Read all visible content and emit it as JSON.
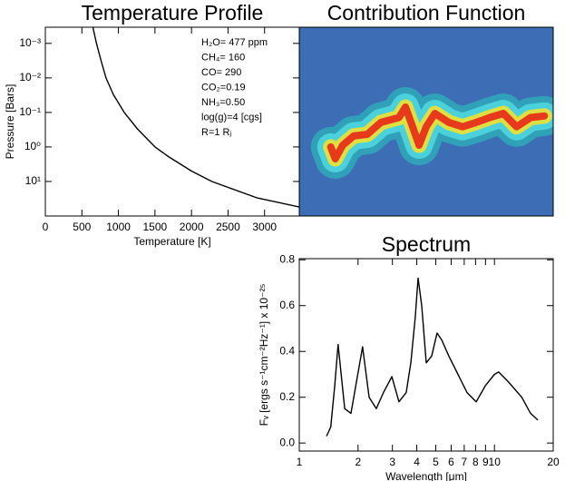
{
  "chart_data": [
    {
      "type": "line",
      "title": "Temperature Profile",
      "xlabel": "Temperature [K]",
      "ylabel": "Pressure [Bars]",
      "x": [
        650,
        700,
        760,
        830,
        930,
        1080,
        1260,
        1500,
        1700,
        2000,
        2280,
        2900,
        3475
      ],
      "values": [
        0.00034,
        0.001,
        0.003,
        0.01,
        0.03,
        0.1,
        0.3,
        1,
        2,
        5,
        10,
        30,
        55
      ],
      "color": "#000000",
      "xlim": [
        0,
        3475
      ],
      "xticks": [
        0,
        500,
        1000,
        1500,
        2000,
        2500,
        3000
      ],
      "ylim": [
        0.00034,
        100
      ],
      "ylog": true,
      "yinvert": true,
      "yticks": [
        {
          "value": 0.001,
          "label": "10⁻³"
        },
        {
          "value": 0.01,
          "label": "10⁻²"
        },
        {
          "value": 0.1,
          "label": "10⁻¹"
        },
        {
          "value": 1,
          "label": "10⁰"
        },
        {
          "value": 10,
          "label": "10¹"
        }
      ],
      "annotations": [
        "H₂O= 477 ppm",
        "CH₄= 160",
        "CO= 290",
        "CO₂=0.19",
        "NH₃=0.50",
        "log(g)=4 [cgs]",
        "R=1 Rⱼ"
      ]
    },
    {
      "type": "heatmap",
      "title": "Contribution Function",
      "x": [
        1.45,
        1.53,
        1.67,
        1.9,
        2.23,
        2.62,
        3.24,
        3.5,
        3.81,
        4.11,
        4.47,
        4.95,
        5.84,
        6.86,
        8.06,
        9.46,
        11.1,
        13.0,
        15.3,
        18.0
      ],
      "values": [
        1,
        2.2,
        0.89,
        0.48,
        0.43,
        0.195,
        0.14,
        0.07,
        0.26,
        0.89,
        0.26,
        0.107,
        0.195,
        0.26,
        0.195,
        0.14,
        0.107,
        0.26,
        0.14,
        0.127
      ],
      "xlim": [
        1,
        20
      ],
      "xlog": true,
      "ylim": [
        0.00034,
        100
      ],
      "ylog": true,
      "yinvert": true,
      "background": "#3d6db4",
      "colors": [
        "#2fa6b8",
        "#4fd6e0",
        "#f0e030",
        "#e82818"
      ]
    },
    {
      "type": "line",
      "title": "Spectrum",
      "xlabel": "Wavelength [μm]",
      "ylabel": "Fᵥ [ergs s⁻¹cm⁻²Hz⁻¹] x 10⁻²⁵",
      "x": [
        1.38,
        1.45,
        1.52,
        1.58,
        1.71,
        1.84,
        2.11,
        2.28,
        2.48,
        2.7,
        2.98,
        3.24,
        3.53,
        3.73,
        3.93,
        4.06,
        4.24,
        4.47,
        4.77,
        5.08,
        5.37,
        5.84,
        6.5,
        7.24,
        8.06,
        8.97,
        10,
        10.5,
        11.7,
        13.8,
        15.3,
        16.7
      ],
      "values": [
        0.03,
        0.07,
        0.25,
        0.43,
        0.15,
        0.13,
        0.42,
        0.2,
        0.15,
        0.22,
        0.29,
        0.18,
        0.22,
        0.35,
        0.55,
        0.72,
        0.6,
        0.35,
        0.38,
        0.48,
        0.45,
        0.38,
        0.3,
        0.22,
        0.18,
        0.25,
        0.3,
        0.31,
        0.27,
        0.2,
        0.13,
        0.1
      ],
      "color": "#000000",
      "xlim": [
        1,
        20
      ],
      "xlog": true,
      "xticks": [
        1,
        2,
        3,
        4,
        5,
        6,
        7,
        8,
        9,
        10,
        20
      ],
      "ylim": [
        -0.035,
        0.805
      ],
      "yticks": [
        {
          "value": 0,
          "label": "0.0"
        },
        0.2,
        0.4,
        0.6,
        0.8
      ]
    }
  ]
}
